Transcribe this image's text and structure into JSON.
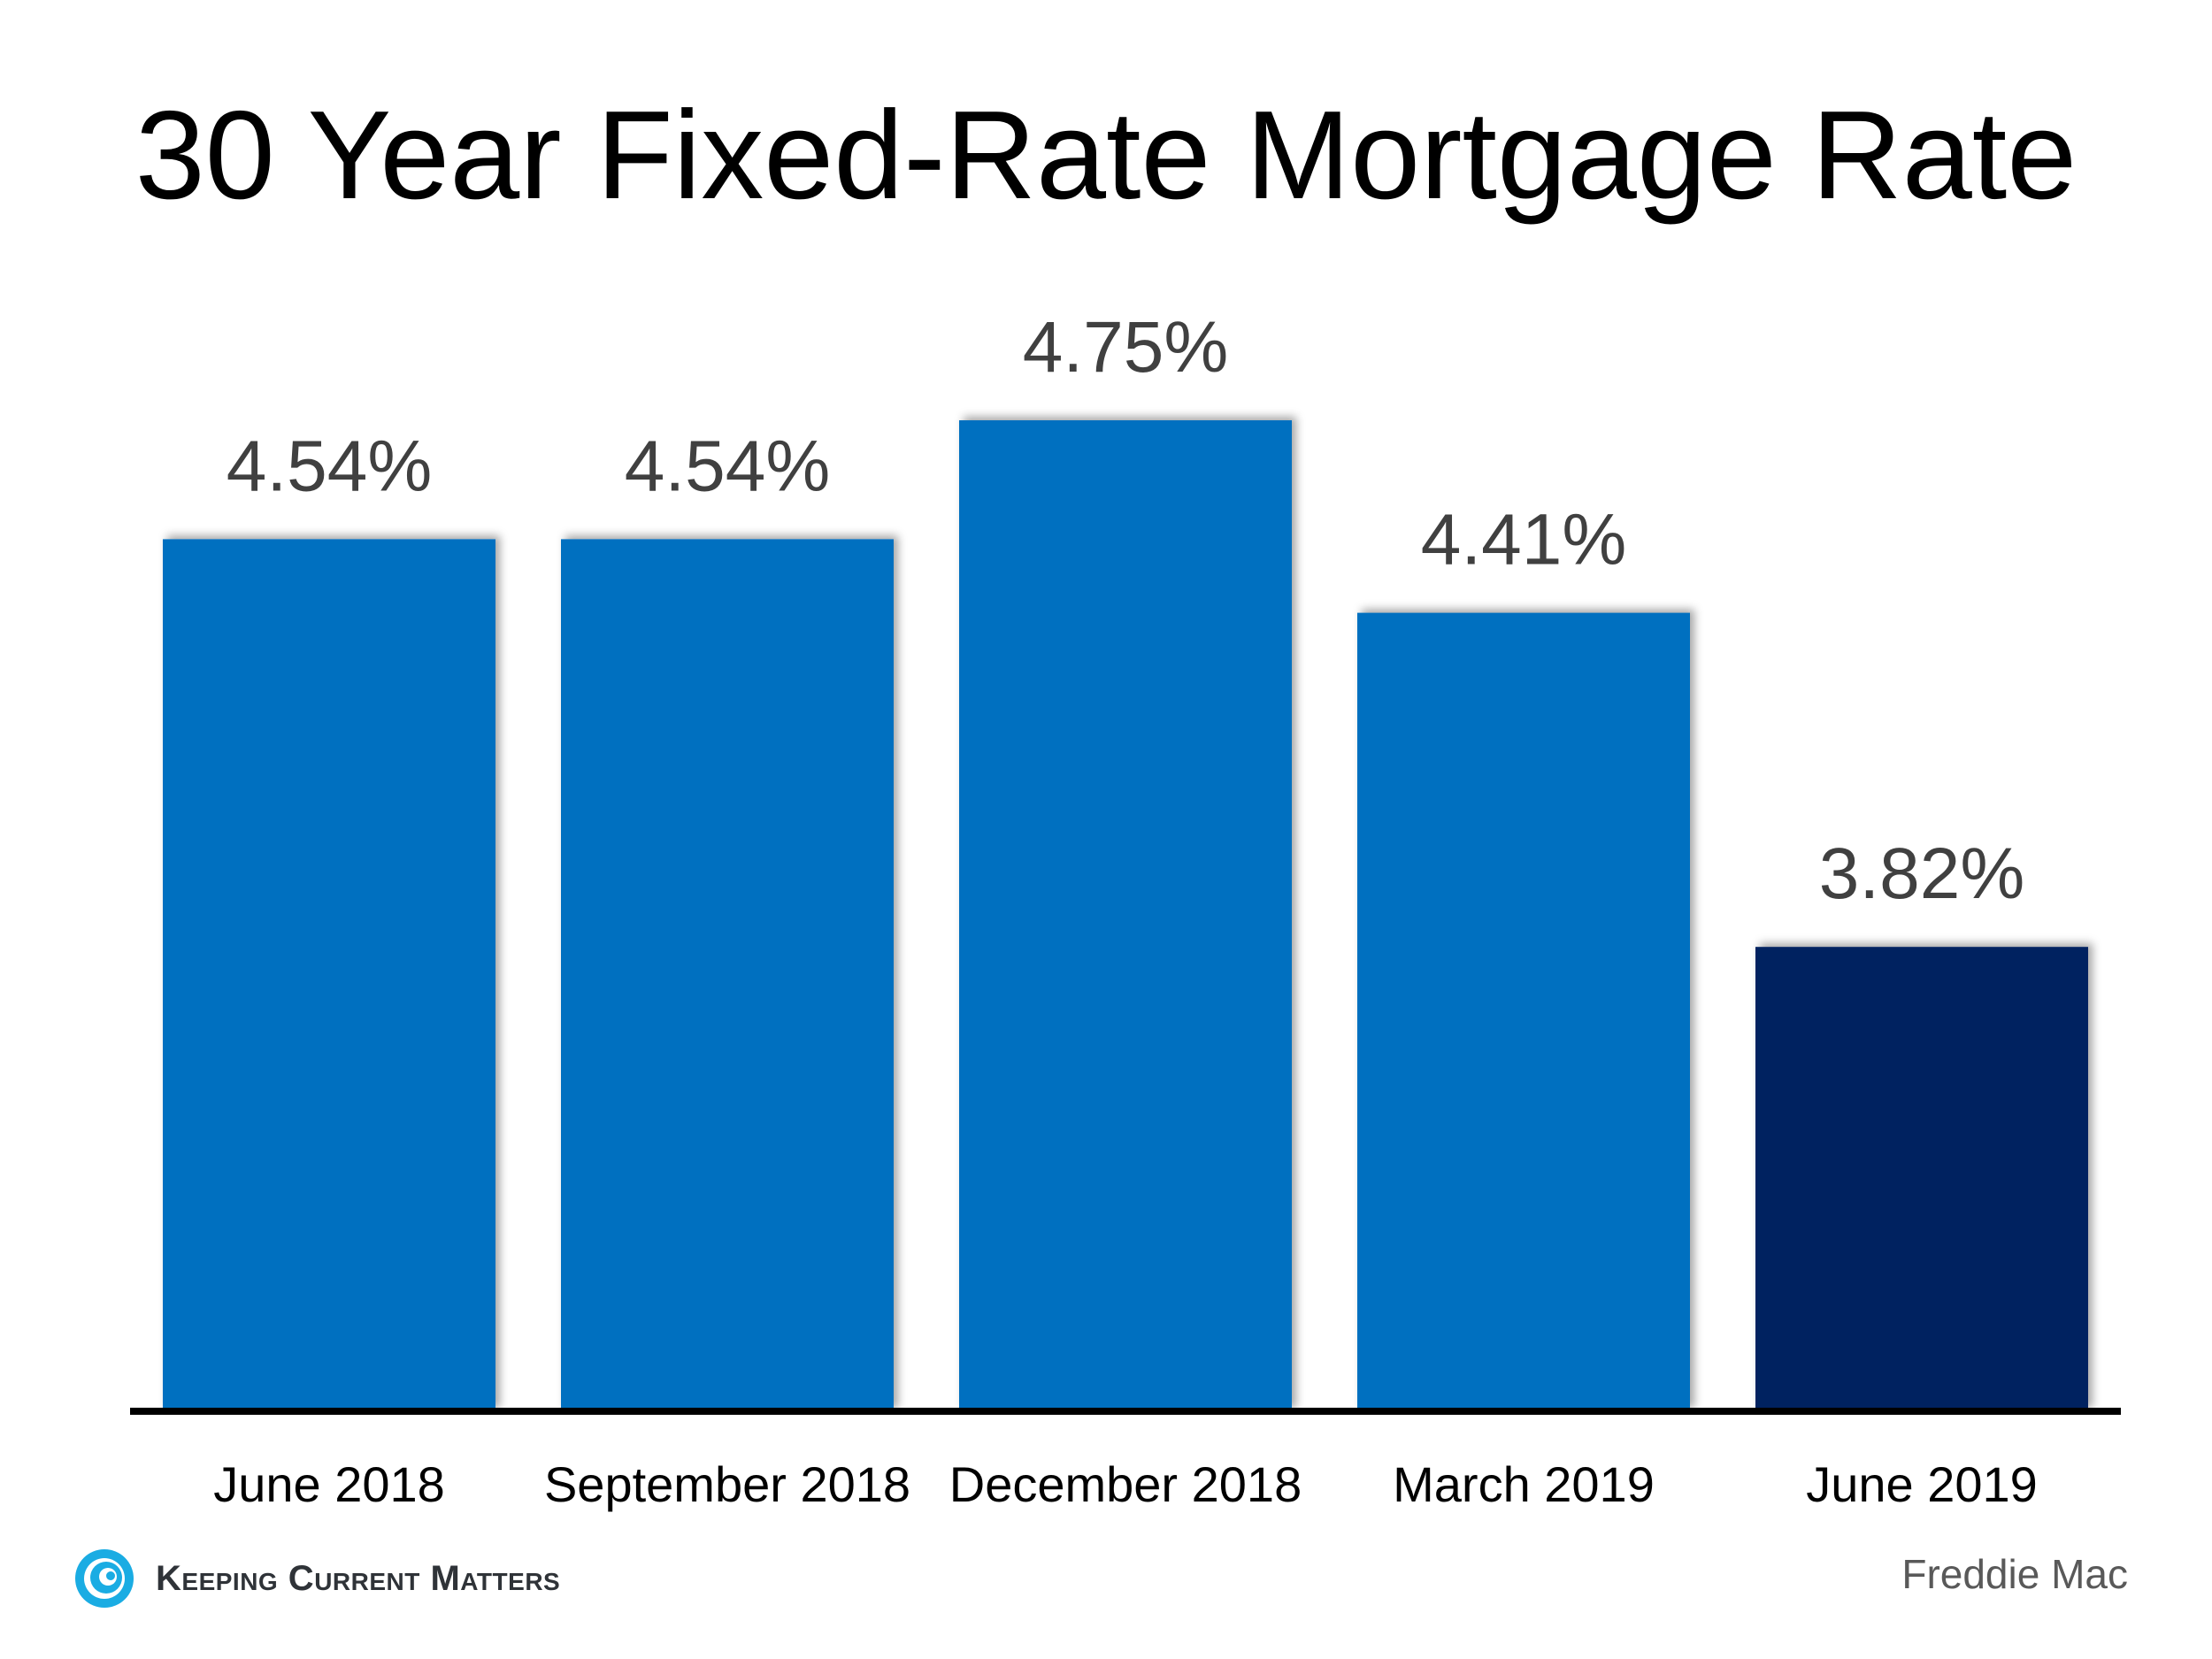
{
  "chart_data": {
    "type": "bar",
    "title": "30 Year Fixed-Rate Mortgage Rate",
    "categories": [
      "June 2018",
      "September 2018",
      "December 2018",
      "March 2019",
      "June 2019"
    ],
    "values": [
      4.54,
      4.54,
      4.75,
      4.41,
      3.82
    ],
    "data_labels": [
      "4.54%",
      "4.54%",
      "4.75%",
      "4.41%",
      "3.82%"
    ],
    "ylim": [
      3,
      5
    ],
    "grid": false,
    "colors": [
      "#0070C0",
      "#0070C0",
      "#0070C0",
      "#0070C0",
      "#002060"
    ],
    "source": "Freddie Mac"
  },
  "branding": {
    "logo_text": "Keeping Current Matters",
    "logo_color": "#1AACE3"
  }
}
